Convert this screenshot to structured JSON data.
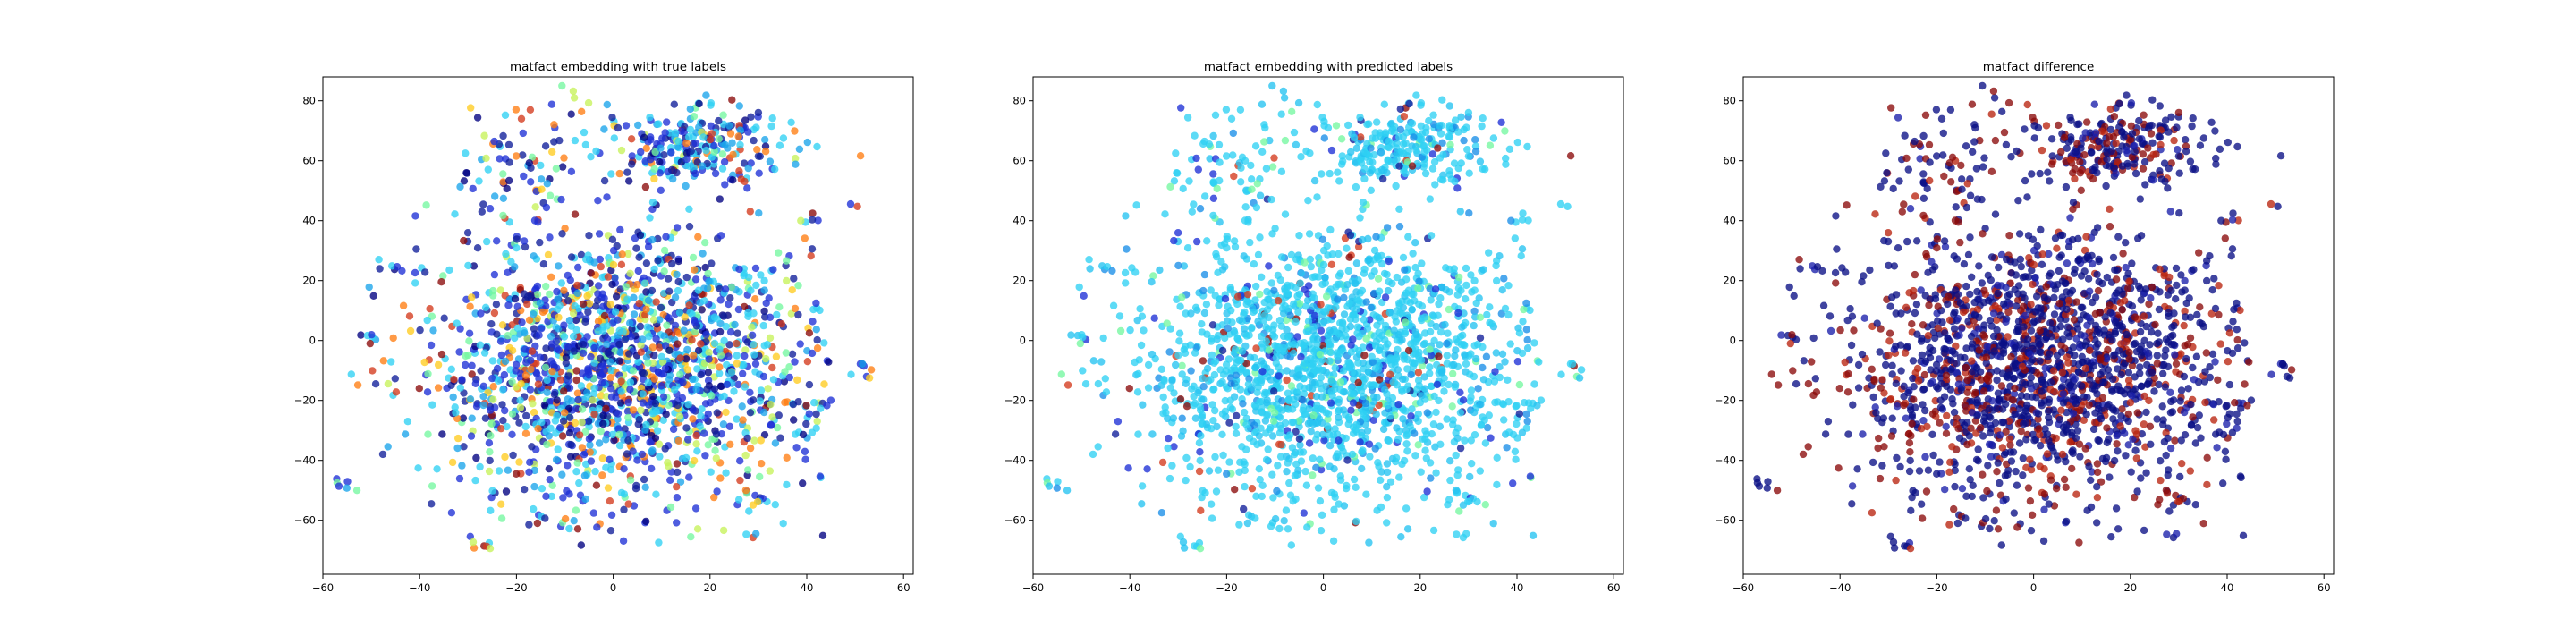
{
  "chart_data": [
    {
      "type": "scatter",
      "title": "matfact embedding with true labels",
      "xlabel": "",
      "ylabel": "",
      "xlim": [
        -60,
        62
      ],
      "ylim": [
        -78,
        88
      ],
      "xticks": [
        -60,
        -40,
        -20,
        0,
        20,
        40,
        60
      ],
      "yticks": [
        -60,
        -40,
        -20,
        0,
        20,
        40,
        60,
        80
      ],
      "grid": false,
      "colormap": "jet",
      "color_mix": [
        {
          "color": "#1e2fd6",
          "weight": 0.24
        },
        {
          "color": "#0f1e9a",
          "weight": 0.14
        },
        {
          "color": "#000080",
          "weight": 0.06
        },
        {
          "color": "#2fd1f4",
          "weight": 0.18
        },
        {
          "color": "#1aa4ea",
          "weight": 0.1
        },
        {
          "color": "#74f7a0",
          "weight": 0.07
        },
        {
          "color": "#c6f25a",
          "weight": 0.05
        },
        {
          "color": "#ffcc20",
          "weight": 0.04
        },
        {
          "color": "#ff7d12",
          "weight": 0.05
        },
        {
          "color": "#d43a1c",
          "weight": 0.05
        },
        {
          "color": "#8a0a0a",
          "weight": 0.02
        }
      ]
    },
    {
      "type": "scatter",
      "title": "matfact embedding with predicted labels",
      "xlabel": "",
      "ylabel": "",
      "xlim": [
        -60,
        62
      ],
      "ylim": [
        -78,
        88
      ],
      "xticks": [
        -60,
        -40,
        -20,
        0,
        20,
        40,
        60
      ],
      "yticks": [
        -60,
        -40,
        -20,
        0,
        20,
        40,
        60,
        80
      ],
      "grid": false,
      "colormap": "jet",
      "color_mix": [
        {
          "color": "#2fd1f4",
          "weight": 0.62
        },
        {
          "color": "#25c3f1",
          "weight": 0.18
        },
        {
          "color": "#1a8ee8",
          "weight": 0.06
        },
        {
          "color": "#1e2fd6",
          "weight": 0.05
        },
        {
          "color": "#0f1e9a",
          "weight": 0.02
        },
        {
          "color": "#74f7a0",
          "weight": 0.04
        },
        {
          "color": "#d43a1c",
          "weight": 0.02
        },
        {
          "color": "#8a0a0a",
          "weight": 0.01
        }
      ]
    },
    {
      "type": "scatter",
      "title": "matfact difference",
      "xlabel": "",
      "ylabel": "",
      "xlim": [
        -60,
        62
      ],
      "ylim": [
        -78,
        88
      ],
      "xticks": [
        -60,
        -40,
        -20,
        0,
        20,
        40,
        60
      ],
      "yticks": [
        -60,
        -40,
        -20,
        0,
        20,
        40,
        60,
        80
      ],
      "grid": false,
      "colormap": "jet",
      "color_mix": [
        {
          "color": "#0a0f85",
          "weight": 0.58
        },
        {
          "color": "#1a1faa",
          "weight": 0.1
        },
        {
          "color": "#8a0a0a",
          "weight": 0.2
        },
        {
          "color": "#b8240f",
          "weight": 0.12
        }
      ]
    }
  ]
}
